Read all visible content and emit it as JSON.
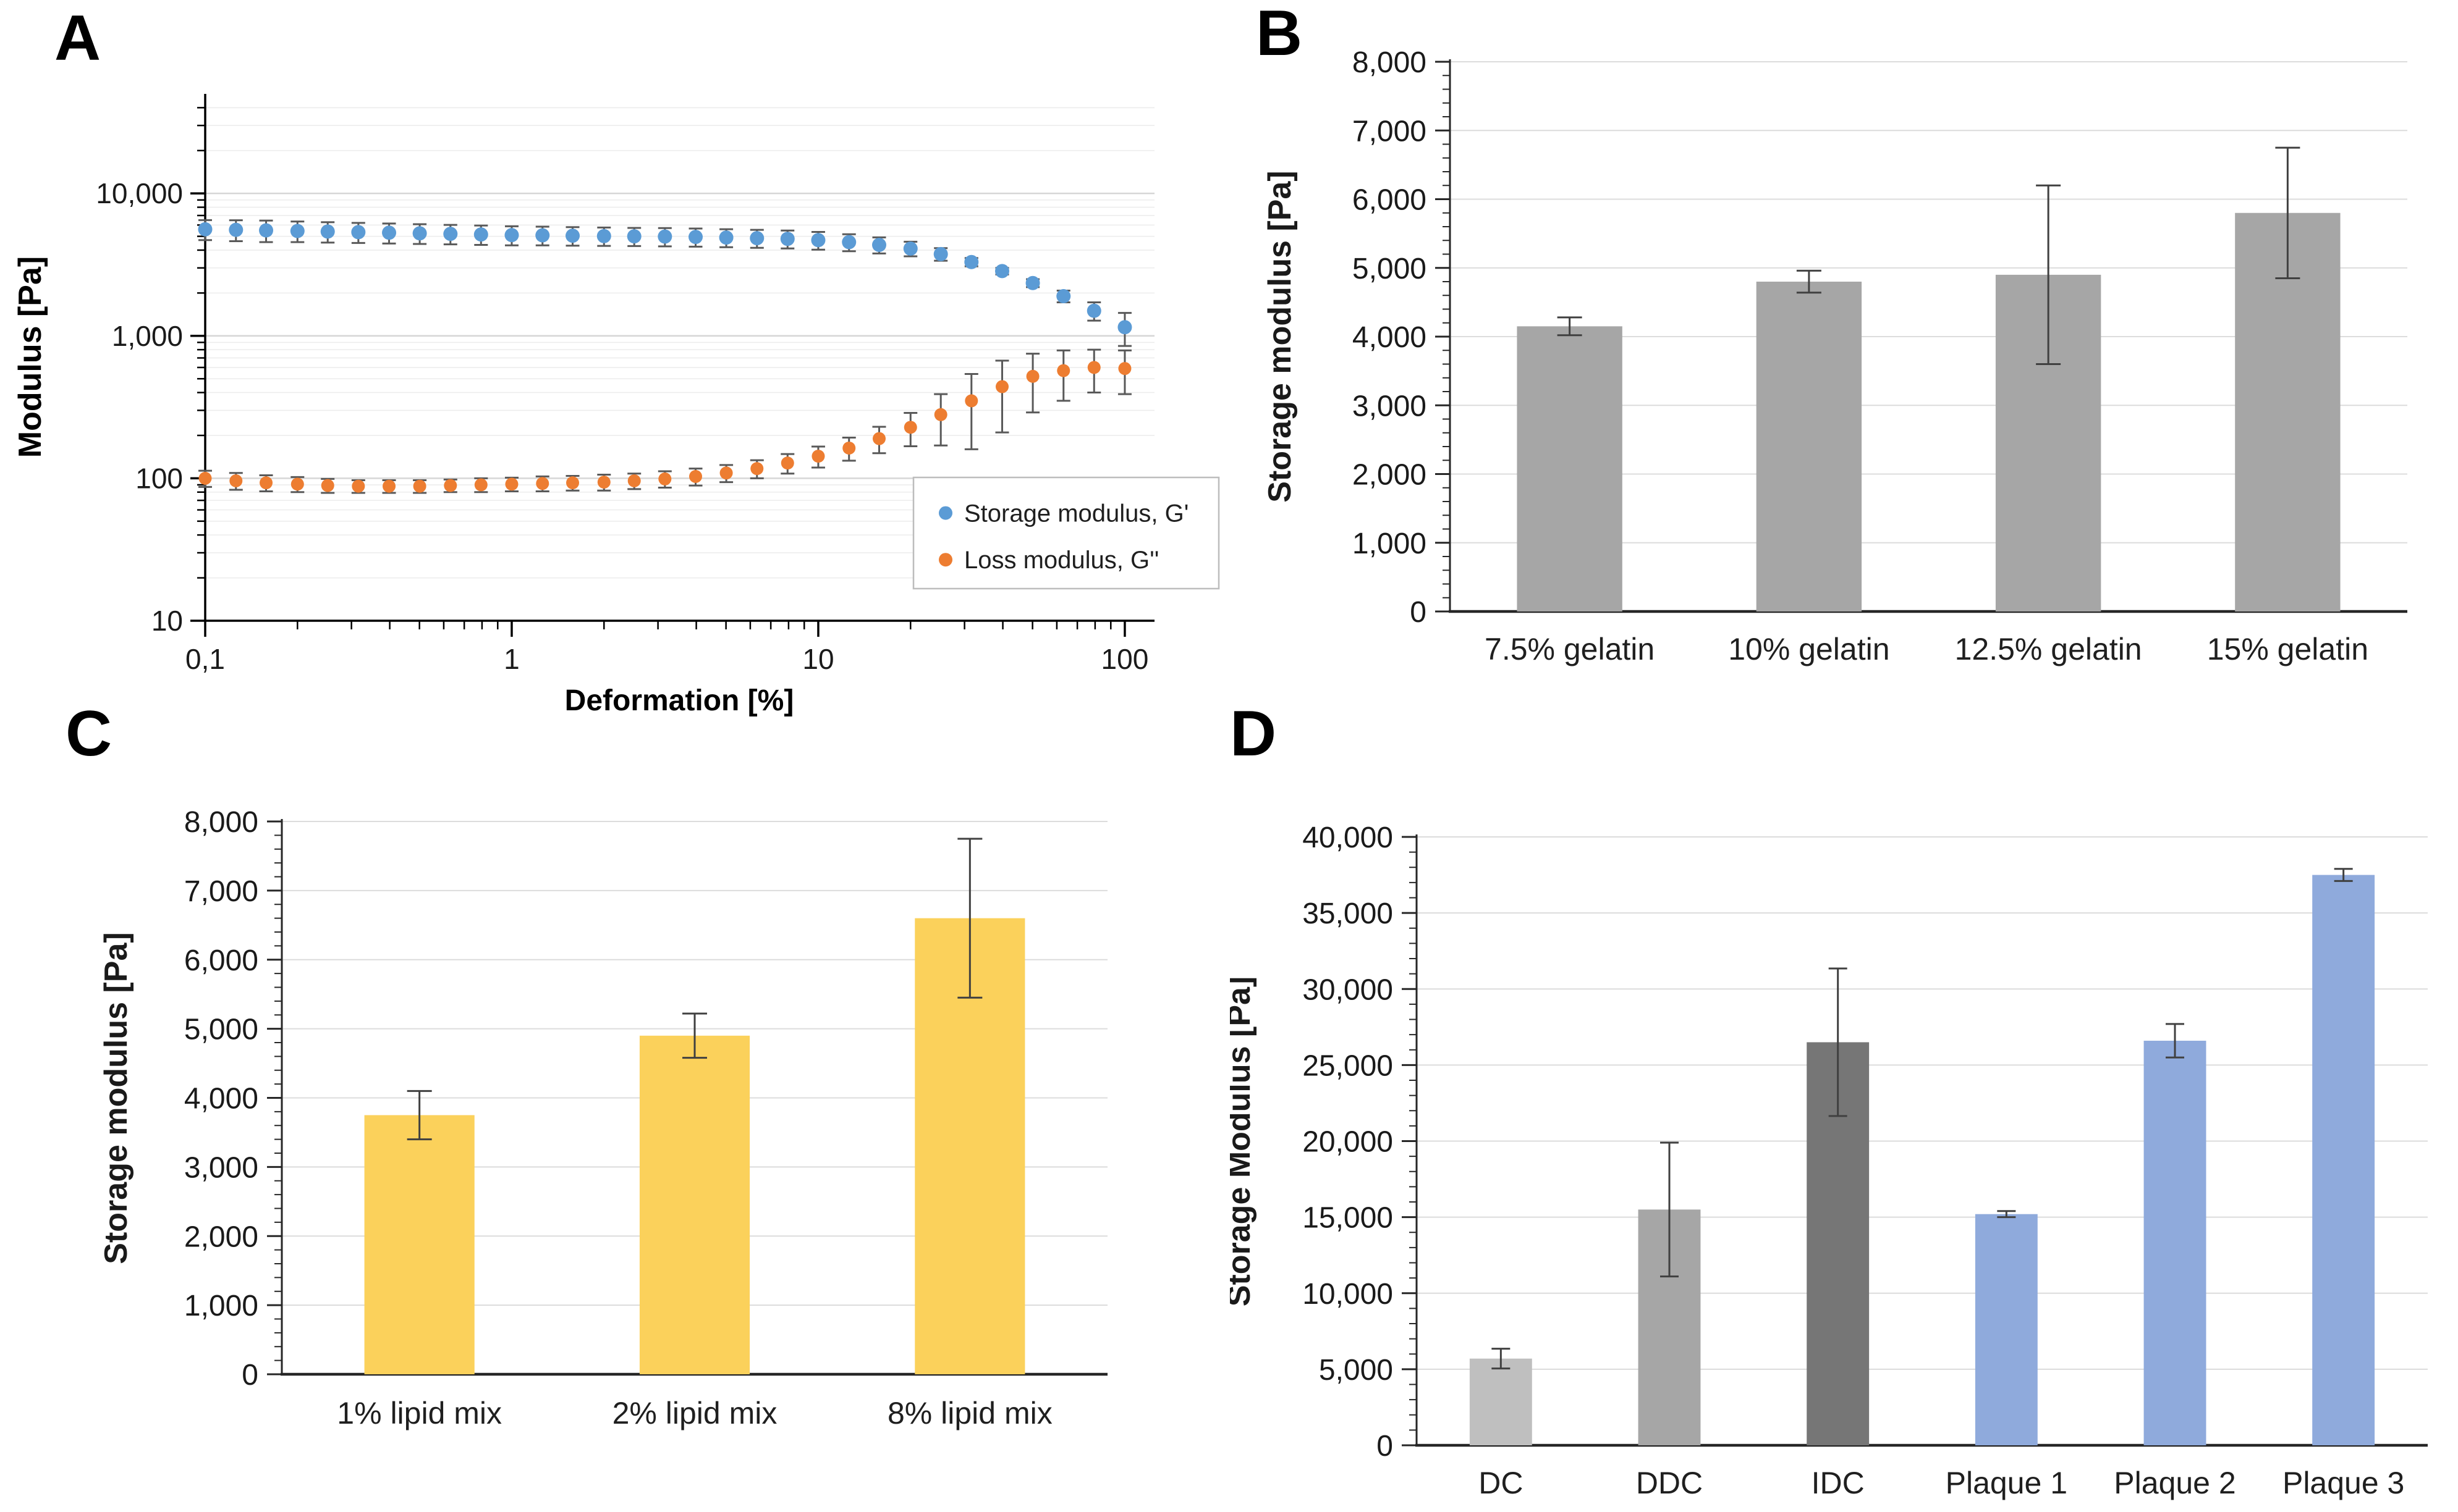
{
  "page": {
    "background": "#ffffff"
  },
  "chart_data": [
    {
      "panel": "A",
      "type": "scatter",
      "x_scale": "log",
      "y_scale": "log",
      "xlabel": "Deformation [%]",
      "ylabel": "Modulus [Pa]",
      "xlim": [
        0.1,
        125
      ],
      "ylim": [
        10,
        50000
      ],
      "grid": "horizontal-log",
      "x_tick_labels": [
        {
          "v": 0.1,
          "label": "0,1"
        },
        {
          "v": 1,
          "label": "1"
        },
        {
          "v": 10,
          "label": "10"
        },
        {
          "v": 100,
          "label": "100"
        }
      ],
      "y_tick_labels": [
        {
          "v": 10,
          "label": "10"
        },
        {
          "v": 100,
          "label": "100"
        },
        {
          "v": 1000,
          "label": "1,000"
        },
        {
          "v": 10000,
          "label": "10,000"
        }
      ],
      "legend": {
        "position": "bottom-right",
        "entries": [
          {
            "label": "Storage modulus, G'",
            "color": "#5B9BD5"
          },
          {
            "label": "Loss modulus, G''",
            "color": "#ED7D31"
          }
        ]
      },
      "series": [
        {
          "name": "Storage modulus, G'",
          "color": "#5B9BD5",
          "marker": "circle",
          "x": [
            0.1,
            0.126,
            0.158,
            0.2,
            0.251,
            0.316,
            0.398,
            0.501,
            0.631,
            0.794,
            1,
            1.26,
            1.58,
            2,
            2.51,
            3.16,
            3.98,
            5.01,
            6.31,
            7.94,
            10,
            12.6,
            15.8,
            20,
            25.1,
            31.6,
            39.8,
            50.1,
            63.1,
            79.4,
            100
          ],
          "y": [
            5600,
            5550,
            5500,
            5450,
            5400,
            5350,
            5300,
            5250,
            5200,
            5150,
            5100,
            5080,
            5050,
            5020,
            5000,
            4980,
            4950,
            4900,
            4850,
            4800,
            4700,
            4550,
            4350,
            4100,
            3750,
            3300,
            2850,
            2350,
            1900,
            1500,
            1150
          ],
          "err": [
            900,
            930,
            950,
            900,
            880,
            860,
            850,
            830,
            810,
            800,
            780,
            760,
            750,
            740,
            730,
            730,
            720,
            710,
            700,
            690,
            670,
            620,
            560,
            480,
            380,
            220,
            150,
            150,
            180,
            220,
            300
          ]
        },
        {
          "name": "Loss modulus, G''",
          "color": "#ED7D31",
          "marker": "circle",
          "x": [
            0.1,
            0.126,
            0.158,
            0.2,
            0.251,
            0.316,
            0.398,
            0.501,
            0.631,
            0.794,
            1,
            1.26,
            1.58,
            2,
            2.51,
            3.16,
            3.98,
            5.01,
            6.31,
            7.94,
            10,
            12.6,
            15.8,
            20,
            25.1,
            31.6,
            39.8,
            50.1,
            63.1,
            79.4,
            100
          ],
          "y": [
            100,
            96,
            93,
            91,
            89,
            88,
            88,
            88,
            89,
            90,
            91,
            92,
            93,
            94,
            96,
            99,
            103,
            109,
            117,
            128,
            143,
            163,
            190,
            228,
            280,
            350,
            440,
            520,
            570,
            600,
            590
          ],
          "err": [
            13,
            13,
            12,
            11,
            10,
            9,
            9,
            9,
            9,
            10,
            10,
            11,
            11,
            12,
            12,
            13,
            14,
            15,
            17,
            20,
            24,
            30,
            40,
            60,
            110,
            190,
            230,
            230,
            220,
            200,
            200
          ]
        }
      ]
    },
    {
      "panel": "B",
      "type": "bar",
      "ylabel": "Storage modulus [Pa]",
      "ylim": [
        0,
        8000
      ],
      "y_major_step": 1000,
      "y_minor_step": 200,
      "grid": "horizontal",
      "y_tick_labels": [
        "0",
        "1,000",
        "2,000",
        "3,000",
        "4,000",
        "5,000",
        "6,000",
        "7,000",
        "8,000"
      ],
      "categories": [
        "7.5% gelatin",
        "10% gelatin",
        "12.5% gelatin",
        "15% gelatin"
      ],
      "values": [
        4150,
        4800,
        4900,
        5800
      ],
      "errors": [
        130,
        160,
        1300,
        950
      ],
      "bar_color": "#A6A6A6"
    },
    {
      "panel": "C",
      "type": "bar",
      "ylabel": "Storage modulus [Pa]",
      "ylim": [
        0,
        8000
      ],
      "y_major_step": 1000,
      "y_minor_step": 200,
      "grid": "horizontal",
      "y_tick_labels": [
        "0",
        "1,000",
        "2,000",
        "3,000",
        "4,000",
        "5,000",
        "6,000",
        "7,000",
        "8,000"
      ],
      "categories": [
        "1% lipid mix",
        "2% lipid mix",
        "8% lipid mix"
      ],
      "values": [
        3750,
        4900,
        6600
      ],
      "errors": [
        350,
        320,
        1150
      ],
      "bar_color": "#FBD15B"
    },
    {
      "panel": "D",
      "type": "bar",
      "ylabel": "Storage Modulus [Pa]",
      "ylim": [
        0,
        40000
      ],
      "y_major_step": 5000,
      "y_minor_step": 1000,
      "grid": "horizontal",
      "y_tick_labels": [
        "0",
        "5,000",
        "10,000",
        "15,000",
        "20,000",
        "25,000",
        "30,000",
        "35,000",
        "40,000"
      ],
      "categories": [
        "DC",
        "DDC",
        "IDC",
        "Plaque 1",
        "Plaque 2",
        "Plaque 3"
      ],
      "values": [
        5700,
        15500,
        26500,
        15200,
        26600,
        37500
      ],
      "errors": [
        650,
        4400,
        4850,
        200,
        1100,
        400
      ],
      "bar_color": "#8FAADC",
      "bar_colors": [
        "#BFBFBF",
        "#A6A6A6",
        "#767676",
        "#8FAADC",
        "#8FAADC",
        "#8FAADC"
      ]
    }
  ],
  "colors": {
    "storage_modulus_marker": "#5B9BD5",
    "loss_modulus_marker": "#ED7D31",
    "gelatin_bar": "#A6A6A6",
    "lipid_bar": "#FBD15B",
    "plaque_bar": "#8FAADC",
    "grid_major": "#D6D6D6",
    "grid_minor": "#ECECEC",
    "error_bar": "#595959",
    "axis": "#1a1a1a"
  }
}
